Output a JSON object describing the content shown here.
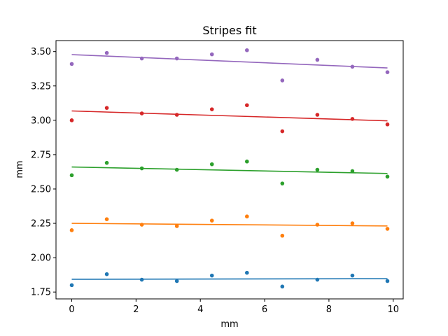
{
  "chart_data": {
    "type": "scatter",
    "title": "Stripes fit",
    "xlabel": "mm",
    "ylabel": "mm",
    "xlim": [
      -0.49,
      10.31
    ],
    "ylim": [
      1.7,
      3.58
    ],
    "xticks": [
      0,
      2,
      4,
      6,
      8,
      10
    ],
    "xtick_labels": [
      "0",
      "2",
      "4",
      "6",
      "8",
      "10"
    ],
    "yticks": [
      1.75,
      2.0,
      2.25,
      2.5,
      2.75,
      3.0,
      3.25,
      3.5
    ],
    "ytick_labels": [
      "1.75",
      "2.00",
      "2.25",
      "2.50",
      "2.75",
      "3.00",
      "3.25",
      "3.50"
    ],
    "grid": false,
    "x": [
      0.0,
      1.09,
      2.18,
      3.27,
      4.36,
      5.45,
      6.55,
      7.64,
      8.73,
      9.82
    ],
    "series": [
      {
        "color": "#1f77b4",
        "points": [
          1.8,
          1.88,
          1.84,
          1.83,
          1.87,
          1.89,
          1.79,
          1.84,
          1.87,
          1.83
        ],
        "fit": [
          1.843,
          1.847
        ]
      },
      {
        "color": "#ff7f0e",
        "points": [
          2.2,
          2.28,
          2.24,
          2.23,
          2.27,
          2.3,
          2.16,
          2.24,
          2.25,
          2.21
        ],
        "fit": [
          2.25,
          2.231
        ]
      },
      {
        "color": "#2ca02c",
        "points": [
          2.6,
          2.69,
          2.65,
          2.64,
          2.68,
          2.7,
          2.54,
          2.64,
          2.63,
          2.59
        ],
        "fit": [
          2.66,
          2.613
        ]
      },
      {
        "color": "#d62728",
        "points": [
          3.0,
          3.09,
          3.05,
          3.04,
          3.08,
          3.11,
          2.92,
          3.04,
          3.01,
          2.97
        ],
        "fit": [
          3.068,
          2.996
        ]
      },
      {
        "color": "#9467bd",
        "points": [
          3.41,
          3.49,
          3.45,
          3.45,
          3.48,
          3.51,
          3.29,
          3.44,
          3.39,
          3.35
        ],
        "fit": [
          3.478,
          3.381
        ]
      }
    ]
  }
}
